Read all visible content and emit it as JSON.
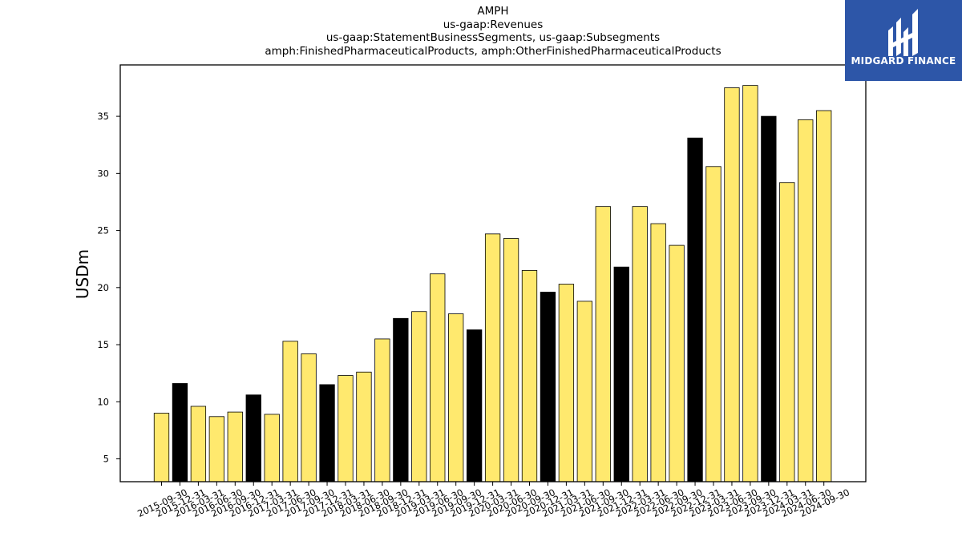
{
  "chart_data": {
    "type": "bar",
    "title_lines": [
      "AMPH",
      "us-gaap:Revenues",
      "us-gaap:StatementBusinessSegments, us-gaap:Subsegments",
      "amph:FinishedPharmaceuticalProducts, amph:OtherFinishedPharmaceuticalProducts"
    ],
    "ylabel": "USDm",
    "ylim": [
      3,
      39.5
    ],
    "yticks": [
      5,
      10,
      15,
      20,
      25,
      30,
      35
    ],
    "categories": [
      "2015-09-30",
      "2015-12-31",
      "2016-03-31",
      "2016-06-30",
      "2016-09-30",
      "2016-12-31",
      "2017-03-31",
      "2017-06-30",
      "2017-09-30",
      "2017-12-31",
      "2018-03-31",
      "2018-06-30",
      "2018-09-30",
      "2018-12-31",
      "2019-03-31",
      "2019-06-30",
      "2019-09-30",
      "2019-12-31",
      "2020-03-31",
      "2020-06-30",
      "2020-09-30",
      "2020-12-31",
      "2021-03-31",
      "2021-06-30",
      "2021-09-30",
      "2021-12-31",
      "2022-03-31",
      "2022-06-30",
      "2022-09-30",
      "2022-12-31",
      "2023-03-31",
      "2023-06-30",
      "2023-09-30",
      "2023-12-31",
      "2024-03-31",
      "2024-06-30",
      "2024-09-30"
    ],
    "values": [
      9.0,
      11.6,
      9.6,
      8.7,
      9.1,
      10.6,
      8.9,
      15.3,
      14.2,
      11.5,
      12.3,
      12.6,
      15.5,
      17.3,
      17.9,
      21.2,
      17.7,
      16.3,
      24.7,
      24.3,
      21.5,
      19.6,
      20.3,
      18.8,
      27.1,
      21.8,
      27.1,
      25.6,
      23.7,
      33.1,
      30.6,
      37.5,
      37.7,
      35.0,
      29.2,
      34.7,
      35.5
    ],
    "year_end_flags": [
      false,
      true,
      false,
      false,
      false,
      true,
      false,
      false,
      false,
      true,
      false,
      false,
      false,
      true,
      false,
      false,
      false,
      true,
      false,
      false,
      false,
      true,
      false,
      false,
      false,
      true,
      false,
      false,
      false,
      true,
      false,
      false,
      false,
      true,
      false,
      false,
      false
    ],
    "colors": {
      "quarter": "#ffe96e",
      "year_end": "#000000",
      "edge": "#000000"
    },
    "grid": false,
    "legend": "none"
  },
  "logo": {
    "text": "MIDGARD FINANCE",
    "background": "#2d56a8"
  }
}
